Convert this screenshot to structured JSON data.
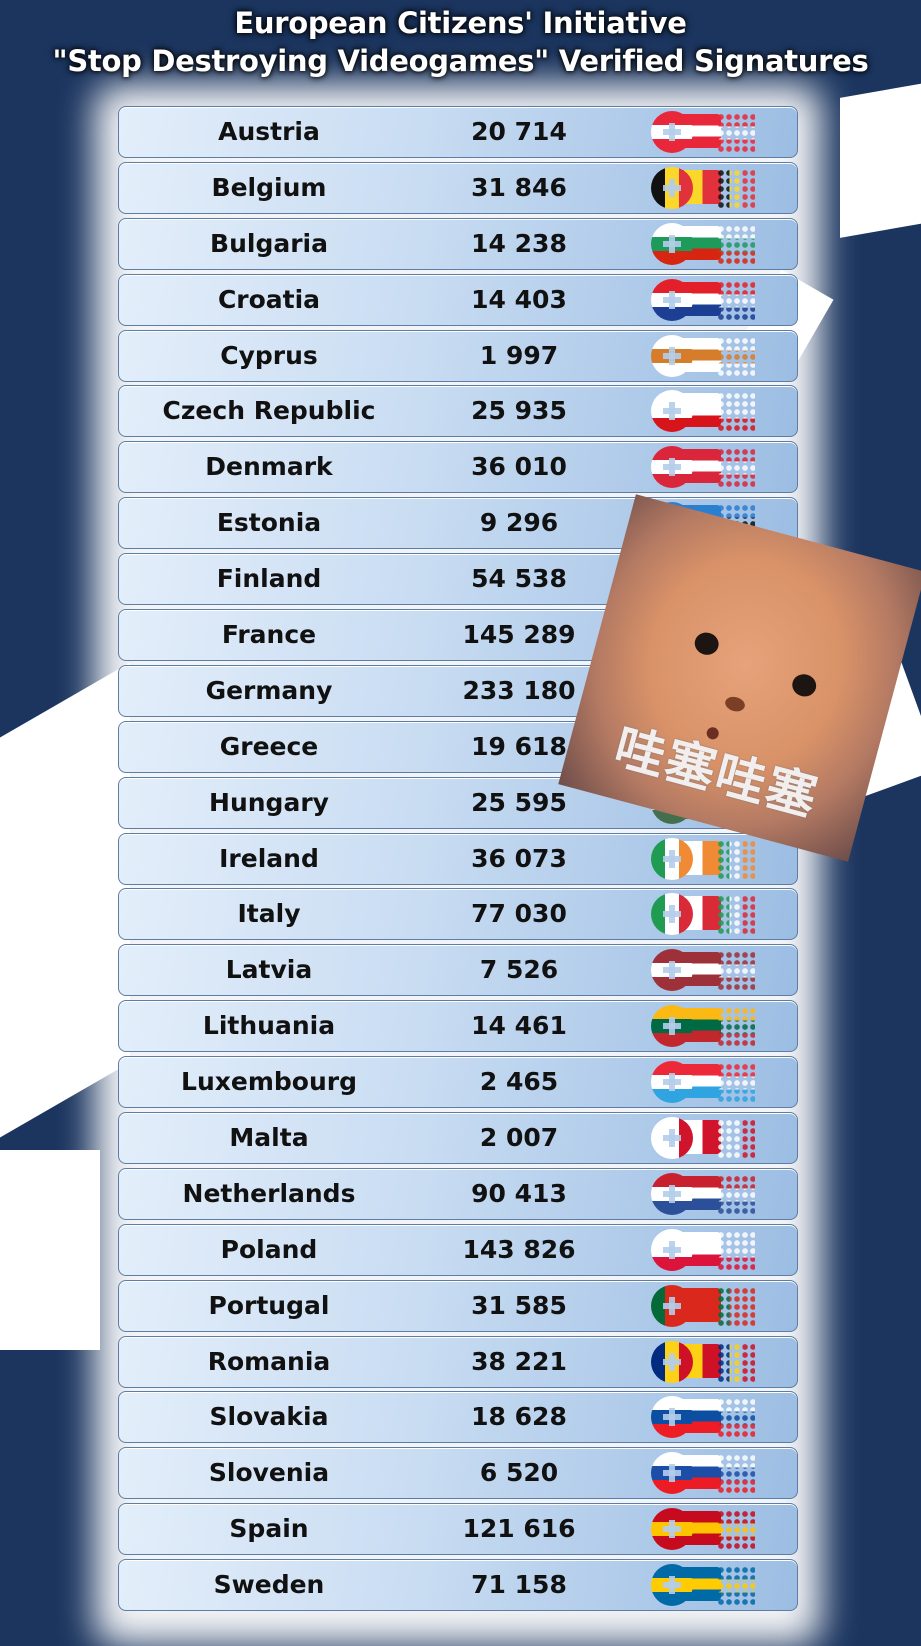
{
  "title": {
    "line1": "European Citizens' Initiative",
    "line2": "\"Stop Destroying Videogames\" Verified Signatures"
  },
  "colors": {
    "background": "#1b355f",
    "row": "#c8dcf2"
  },
  "rows": [
    {
      "country": "Austria",
      "signatures": "20 714",
      "flag": {
        "dir": "h",
        "colors": [
          "#e8283a",
          "#ffffff",
          "#e8283a"
        ]
      }
    },
    {
      "country": "Belgium",
      "signatures": "31 846",
      "flag": {
        "dir": "v",
        "colors": [
          "#111111",
          "#fbd72b",
          "#e0313c"
        ]
      }
    },
    {
      "country": "Bulgaria",
      "signatures": "14 238",
      "flag": {
        "dir": "h",
        "colors": [
          "#ffffff",
          "#1e9a5b",
          "#d62612"
        ]
      }
    },
    {
      "country": "Croatia",
      "signatures": "14 403",
      "flag": {
        "dir": "h",
        "colors": [
          "#e3202a",
          "#ffffff",
          "#1c3f94"
        ]
      }
    },
    {
      "country": "Cyprus",
      "signatures": "1 997",
      "flag": {
        "dir": "h",
        "colors": [
          "#ffffff",
          "#d67d2b",
          "#ffffff"
        ]
      }
    },
    {
      "country": "Czech Republic",
      "signatures": "25 935",
      "flag": {
        "dir": "h",
        "colors": [
          "#ffffff",
          "#ffffff",
          "#d7141a"
        ]
      }
    },
    {
      "country": "Denmark",
      "signatures": "36 010",
      "flag": {
        "dir": "h",
        "colors": [
          "#d9263b",
          "#ffffff",
          "#d9263b"
        ]
      }
    },
    {
      "country": "Estonia",
      "signatures": "9 296",
      "flag": {
        "dir": "h",
        "colors": [
          "#2b7fd1",
          "#111111",
          "#ffffff"
        ]
      }
    },
    {
      "country": "Finland",
      "signatures": "54 538",
      "flag": {
        "dir": "h",
        "colors": [
          "#ffffff",
          "#1c4ea8",
          "#ffffff"
        ]
      }
    },
    {
      "country": "France",
      "signatures": "145 289",
      "flag": {
        "dir": "v",
        "colors": [
          "#24418f",
          "#ffffff",
          "#e0313c"
        ]
      }
    },
    {
      "country": "Germany",
      "signatures": "233 180",
      "flag": {
        "dir": "h",
        "colors": [
          "#111111",
          "#dd0000",
          "#ffcc00"
        ]
      }
    },
    {
      "country": "Greece",
      "signatures": "19 618",
      "flag": {
        "dir": "h",
        "colors": [
          "#1f63b5",
          "#ffffff",
          "#1f63b5"
        ]
      }
    },
    {
      "country": "Hungary",
      "signatures": "25 595",
      "flag": {
        "dir": "h",
        "colors": [
          "#cd2a3e",
          "#ffffff",
          "#436f4d"
        ]
      }
    },
    {
      "country": "Ireland",
      "signatures": "36 073",
      "flag": {
        "dir": "v",
        "colors": [
          "#1f9b52",
          "#ffffff",
          "#f08a34"
        ]
      }
    },
    {
      "country": "Italy",
      "signatures": "77 030",
      "flag": {
        "dir": "v",
        "colors": [
          "#1f9b52",
          "#ffffff",
          "#d92a38"
        ]
      }
    },
    {
      "country": "Latvia",
      "signatures": "7 526",
      "flag": {
        "dir": "h",
        "colors": [
          "#9e3039",
          "#ffffff",
          "#9e3039"
        ]
      }
    },
    {
      "country": "Lithuania",
      "signatures": "14 461",
      "flag": {
        "dir": "h",
        "colors": [
          "#fdb913",
          "#006a44",
          "#c1272d"
        ]
      }
    },
    {
      "country": "Luxembourg",
      "signatures": "2 465",
      "flag": {
        "dir": "h",
        "colors": [
          "#ed2939",
          "#ffffff",
          "#2fa4e0"
        ]
      }
    },
    {
      "country": "Malta",
      "signatures": "2 007",
      "flag": {
        "dir": "v",
        "colors": [
          "#ffffff",
          "#ffffff",
          "#cf142b"
        ]
      }
    },
    {
      "country": "Netherlands",
      "signatures": "90 413",
      "flag": {
        "dir": "h",
        "colors": [
          "#c8202e",
          "#ffffff",
          "#2c4f9a"
        ]
      }
    },
    {
      "country": "Poland",
      "signatures": "143 826",
      "flag": {
        "dir": "h",
        "colors": [
          "#ffffff",
          "#ffffff",
          "#dc143c"
        ]
      }
    },
    {
      "country": "Portugal",
      "signatures": "31 585",
      "flag": {
        "dir": "v",
        "colors": [
          "#046a38",
          "#da291c",
          "#da291c"
        ]
      }
    },
    {
      "country": "Romania",
      "signatures": "38 221",
      "flag": {
        "dir": "v",
        "colors": [
          "#002b7f",
          "#fcd116",
          "#ce1126"
        ]
      }
    },
    {
      "country": "Slovakia",
      "signatures": "18 628",
      "flag": {
        "dir": "h",
        "colors": [
          "#ffffff",
          "#0b4ea2",
          "#ee1c25"
        ]
      }
    },
    {
      "country": "Slovenia",
      "signatures": "6 520",
      "flag": {
        "dir": "h",
        "colors": [
          "#ffffff",
          "#1c4ea8",
          "#ed1c24"
        ]
      }
    },
    {
      "country": "Spain",
      "signatures": "121 616",
      "flag": {
        "dir": "h",
        "colors": [
          "#c60b1e",
          "#ffc400",
          "#c60b1e"
        ]
      }
    },
    {
      "country": "Sweden",
      "signatures": "71 158",
      "flag": {
        "dir": "h",
        "colors": [
          "#006aa7",
          "#fecc00",
          "#006aa7"
        ]
      }
    }
  ],
  "sticker": {
    "caption": "哇塞哇塞"
  }
}
